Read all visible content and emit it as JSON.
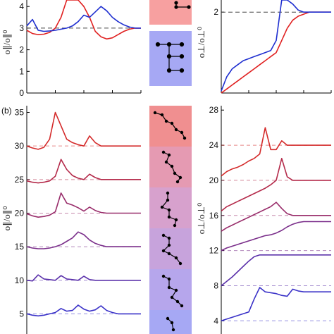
{
  "panel_label_b": "(b)",
  "ylabel_par": "o∥/o∥⁰",
  "ylabel_perp": "o⊥/o⊥⁰",
  "colors": {
    "red": "#e02020",
    "blue": "#1f2fd0",
    "dash": "#444444"
  },
  "chart_data": [
    {
      "type": "line",
      "ylabel": "o∥/o∥⁰",
      "ylim": [
        0,
        4.3
      ],
      "yticks": [
        0,
        1,
        2,
        3,
        4
      ],
      "reference_line": 3,
      "series": [
        {
          "color": "red",
          "y": [
            2.9,
            2.75,
            2.7,
            2.72,
            2.8,
            3.0,
            3.5,
            4.3,
            4.4,
            4.3,
            4.0,
            3.5,
            2.85,
            2.6,
            2.5,
            2.55,
            2.7,
            2.85,
            2.95,
            3.0,
            3.0
          ]
        },
        {
          "color": "blue",
          "y": [
            3.1,
            3.4,
            2.9,
            2.85,
            2.87,
            2.9,
            2.95,
            3.0,
            3.1,
            3.3,
            3.6,
            3.5,
            3.75,
            4.0,
            3.8,
            3.5,
            3.3,
            3.15,
            3.05,
            3.0,
            3.0
          ]
        }
      ]
    },
    {
      "type": "line",
      "ylabel": "o⊥/o⊥⁰",
      "ylim": [
        0,
        2.3
      ],
      "yticks": [
        2
      ],
      "reference_line": 2,
      "series": [
        {
          "color": "red",
          "y": [
            0.0,
            0.1,
            0.2,
            0.3,
            0.4,
            0.5,
            0.6,
            0.7,
            0.8,
            0.9,
            1.0,
            1.3,
            1.6,
            1.8,
            1.9,
            1.95,
            2.0,
            2.0,
            2.0,
            2.0,
            2.0
          ]
        },
        {
          "color": "blue",
          "y": [
            0.05,
            0.4,
            0.6,
            0.7,
            0.8,
            0.85,
            0.9,
            0.95,
            1.0,
            1.05,
            1.3,
            2.4,
            3.0,
            2.2,
            2.05,
            2.0,
            2.0,
            2.0,
            2.0,
            2.0,
            2.0
          ]
        }
      ]
    },
    {
      "type": "line",
      "ylabel": "o∥/o∥⁰",
      "ylim": [
        2,
        36
      ],
      "yticks": [
        5,
        10,
        15,
        20,
        25,
        30,
        35
      ],
      "series": [
        {
          "baseline": 30,
          "color": "#d42a2a",
          "y": [
            30.0,
            29.7,
            29.5,
            29.8,
            31.0,
            35.0,
            33.0,
            31.0,
            30.5,
            30.2,
            30.0,
            31.5,
            30.5,
            30.0,
            30.0,
            30.0,
            30.0,
            30.0,
            30.0,
            30.0,
            30.0
          ]
        },
        {
          "baseline": 25,
          "color": "#b42a4a",
          "y": [
            24.8,
            24.6,
            24.5,
            24.6,
            24.8,
            25.5,
            28.0,
            26.5,
            25.6,
            25.2,
            25.0,
            25.8,
            25.3,
            25.0,
            25.0,
            25.0,
            25.0,
            25.0,
            25.0,
            25.0,
            25.0
          ]
        },
        {
          "baseline": 20,
          "color": "#982c6a",
          "y": [
            19.9,
            19.6,
            19.4,
            19.5,
            19.7,
            20.2,
            23.0,
            21.5,
            21.2,
            20.8,
            20.3,
            20.9,
            20.4,
            20.1,
            20.0,
            20.0,
            20.0,
            20.0,
            20.0,
            20.0,
            20.0
          ]
        },
        {
          "baseline": 15,
          "color": "#7a2e8a",
          "y": [
            15.0,
            14.8,
            14.7,
            14.7,
            14.8,
            15.0,
            15.3,
            15.8,
            16.3,
            17.2,
            16.8,
            16.0,
            15.5,
            15.2,
            15.0,
            15.0,
            15.0,
            15.0,
            15.0,
            15.0,
            15.0
          ]
        },
        {
          "baseline": 10,
          "color": "#5a30aa",
          "y": [
            10.0,
            9.9,
            10.8,
            10.2,
            10.1,
            10.0,
            10.7,
            10.2,
            10.1,
            10.0,
            10.6,
            10.1,
            10.0,
            10.0,
            10.0,
            10.0,
            10.0,
            10.0,
            10.0,
            10.0,
            10.0
          ]
        },
        {
          "baseline": 5,
          "color": "#3a32c8",
          "y": [
            5.0,
            4.8,
            4.7,
            4.8,
            5.0,
            5.2,
            5.8,
            5.4,
            5.5,
            6.3,
            5.7,
            5.4,
            5.6,
            6.2,
            5.5,
            5.2,
            5.0,
            5.0,
            5.0,
            5.0,
            5.0
          ]
        }
      ]
    },
    {
      "type": "line",
      "ylabel": "o⊥/o⊥⁰",
      "ylim": [
        2.5,
        28.5
      ],
      "yticks": [
        4,
        8,
        12,
        16,
        20,
        24,
        28
      ],
      "series": [
        {
          "baseline": 24,
          "color": "#d42a2a",
          "y": [
            20.5,
            21.0,
            21.3,
            21.5,
            21.8,
            22.2,
            22.5,
            23.0,
            26.0,
            23.5,
            23.5,
            24.5,
            24.0,
            24.0,
            24.0,
            24.0,
            24.0,
            24.0,
            24.0,
            24.0,
            24.0
          ]
        },
        {
          "baseline": 20,
          "color": "#b42a4a",
          "y": [
            16.5,
            17.0,
            17.3,
            17.6,
            17.9,
            18.2,
            18.5,
            18.8,
            19.1,
            19.5,
            20.0,
            22.5,
            20.4,
            20.0,
            20.0,
            20.0,
            20.0,
            20.0,
            20.0,
            20.0,
            20.0
          ]
        },
        {
          "baseline": 16,
          "color": "#982c6a",
          "y": [
            14.2,
            14.6,
            14.9,
            15.2,
            15.5,
            15.8,
            16.1,
            16.4,
            16.7,
            17.0,
            17.5,
            16.8,
            16.2,
            16.0,
            16.0,
            16.0,
            16.0,
            16.0,
            16.0,
            16.0,
            16.0
          ]
        },
        {
          "baseline": 12,
          "color": "#7a2e8a",
          "y": [
            12.0,
            12.3,
            12.5,
            12.7,
            12.9,
            13.1,
            13.3,
            13.5,
            13.7,
            13.8,
            14.0,
            14.3,
            14.7,
            15.0,
            15.2,
            15.3,
            15.3,
            15.3,
            15.3,
            15.3,
            15.3
          ]
        },
        {
          "baseline": 8,
          "color": "#5a30aa",
          "y": [
            8.0,
            8.5,
            9.0,
            9.6,
            10.2,
            10.8,
            11.3,
            11.5,
            11.5,
            11.5,
            11.5,
            11.5,
            11.5,
            11.5,
            11.5,
            11.5,
            11.5,
            11.5,
            11.5,
            11.5,
            11.5
          ]
        },
        {
          "baseline": 4,
          "color": "#3a32c8",
          "y": [
            4.0,
            4.2,
            4.4,
            4.6,
            4.8,
            5.0,
            6.5,
            7.8,
            7.3,
            7.2,
            7.1,
            6.9,
            6.8,
            7.6,
            7.4,
            7.3,
            7.3,
            7.3,
            7.3,
            7.3,
            7.3
          ]
        }
      ]
    }
  ]
}
